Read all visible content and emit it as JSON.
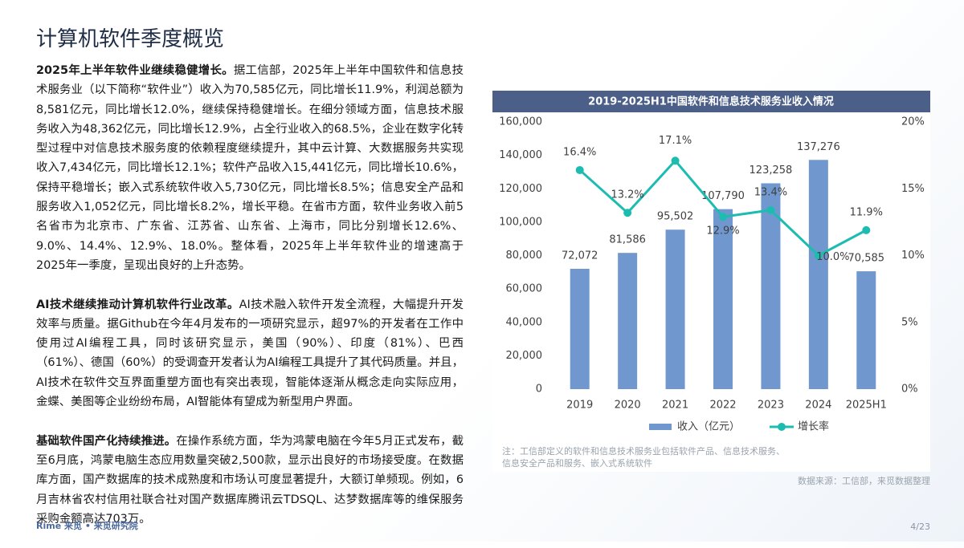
{
  "header": {
    "title": "计算机软件季度概览"
  },
  "paragraphs": [
    {
      "lead": "2025年上半年软件业继续稳健增长。",
      "text": "据工信部，2025年上半年中国软件和信息技术服务业（以下简称“软件业”）收入为70,585亿元，同比增长11.9%，利润总额为8,581亿元，同比增长12.0%，继续保持稳健增长。在细分领域方面，信息技术服务收入为48,362亿元，同比增长12.9%，占全行业收入的68.5%，企业在数字化转型过程中对信息技术服务度的依赖程度继续提升，其中云计算、大数据服务共实现收入7,434亿元，同比增长12.1%；软件产品收入15,441亿元，同比增长10.6%，保持平稳增长；嵌入式系统软件收入5,730亿元，同比增长8.5%；信息安全产品和服务收入1,052亿元，同比增长8.2%，增长平稳。在省市方面，软件业务收入前5名省市为北京市、广东省、江苏省、山东省、上海市，同比分别增长12.6%、9.0%、14.4%、12.9%、18.0%。整体看，2025年上半年软件业的增速高于2025年一季度，呈现出良好的上升态势。"
    },
    {
      "lead": "AI技术继续推动计算机软件行业改革。",
      "text": "AI技术融入软件开发全流程，大幅提升开发效率与质量。据Github在今年4月发布的一项研究显示，超97%的开发者在工作中使用过AI编程工具，同时该研究显示，美国（90%）、印度（81%）、巴西（61%）、德国（60%）的受调查开发者认为AI编程工具提升了其代码质量。并且，AI技术在软件交互界面重塑方面也有突出表现，智能体逐渐从概念走向实际应用，金蝶、美图等企业纷纷布局，AI智能体有望成为新型用户界面。"
    },
    {
      "lead": "基础软件国产化持续推进。",
      "text": "在操作系统方面，华为鸿蒙电脑在今年5月正式发布，截至6月底，鸿蒙电脑生态应用数量突破2,500款，显示出良好的市场接受度。在数据库方面，国产数据库的技术成熟度和市场认可度显著提升，大额订单频现。例如，6月吉林省农村信用社联合社对国产数据库腾讯云TDSQL、达梦数据库等的维保服务采购金额高达703万。"
    }
  ],
  "chart_data": {
    "type": "combo",
    "title": "2019-2025H1中国软件和信息技术服务业收入情况",
    "categories": [
      "2019",
      "2020",
      "2021",
      "2022",
      "2023",
      "2024",
      "2025H1"
    ],
    "series": [
      {
        "name": "收入（亿元）",
        "type": "bar",
        "color": "#7098cf",
        "values": [
          72072,
          81586,
          95502,
          107790,
          123258,
          137276,
          70585
        ],
        "value_labels": [
          "72,072",
          "81,586",
          "95,502",
          "107,790",
          "123,258",
          "137,276",
          "70,585"
        ]
      },
      {
        "name": "增长率",
        "type": "line",
        "axis": "y2",
        "color": "#1cbcb1",
        "values": [
          16.4,
          13.2,
          17.1,
          12.9,
          13.4,
          10.0,
          11.9
        ],
        "value_labels": [
          "16.4%",
          "13.2%",
          "17.1%",
          "12.9%",
          "13.4%",
          "10.0%",
          "11.9%"
        ]
      }
    ],
    "ylim": [
      0,
      160000
    ],
    "yticks": [
      {
        "value": 0,
        "label": "0"
      },
      {
        "value": 20000,
        "label": "20,000"
      },
      {
        "value": 40000,
        "label": "40,000"
      },
      {
        "value": 60000,
        "label": "60,000"
      },
      {
        "value": 80000,
        "label": "80,000"
      },
      {
        "value": 100000,
        "label": "100,000"
      },
      {
        "value": 120000,
        "label": "120,000"
      },
      {
        "value": 140000,
        "label": "140,000"
      },
      {
        "value": 160000,
        "label": "160,000"
      }
    ],
    "y2lim": [
      0,
      20
    ],
    "y2ticks": [
      {
        "value": 0,
        "label": "0%"
      },
      {
        "value": 5,
        "label": "5%"
      },
      {
        "value": 10,
        "label": "10%"
      },
      {
        "value": 15,
        "label": "15%"
      },
      {
        "value": 20,
        "label": "20%"
      }
    ],
    "legend": "bottom",
    "note": [
      "注：工信部定义的软件和信息技术服务业包括软件产品、信息技术服务、",
      "信息安全产品和服务、嵌入式系统软件"
    ]
  },
  "source": "数据来源：工信部，来觅数据整理",
  "footer": {
    "brand": "Rime 来觅",
    "org": "来觅研究院",
    "page": "4/23"
  }
}
